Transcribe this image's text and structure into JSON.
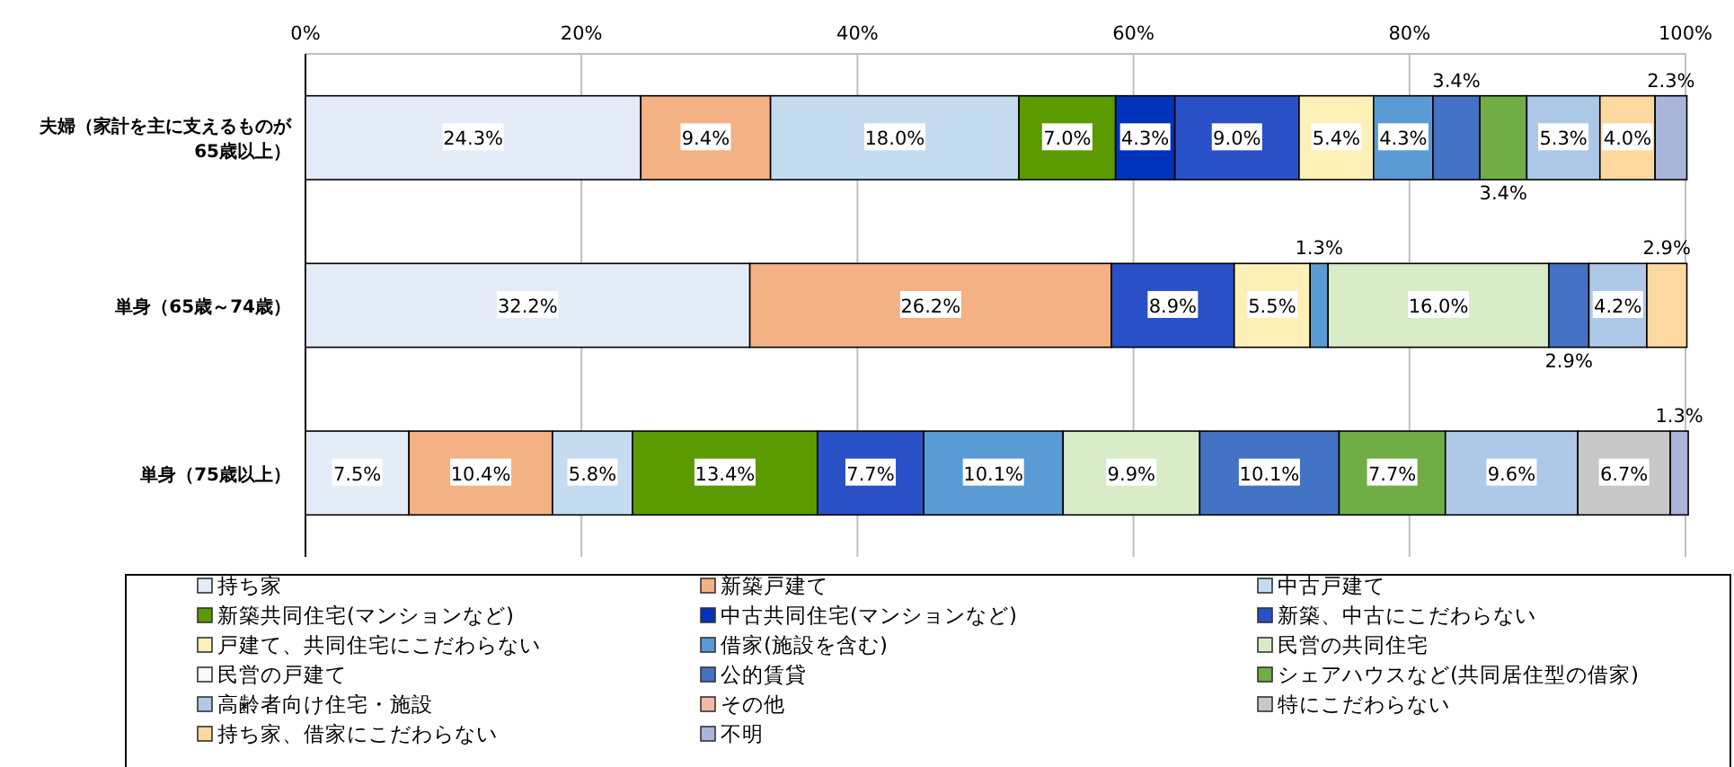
{
  "chart_data": {
    "type": "bar",
    "orientation": "horizontal",
    "stacked": true,
    "categories": [
      "夫婦（家計を主に支えるものが65歳以上）",
      "単身（65歳～74歳）",
      "単身（75歳以上）"
    ],
    "xlim": [
      0,
      100
    ],
    "xticks": [
      {
        "value": 0,
        "label": "0%"
      },
      {
        "value": 20,
        "label": "20%"
      },
      {
        "value": 40,
        "label": "40%"
      },
      {
        "value": 60,
        "label": "60%"
      },
      {
        "value": 80,
        "label": "80%"
      },
      {
        "value": 100,
        "label": "100%"
      }
    ],
    "grid": "x",
    "legend": "bottom",
    "series": [
      {
        "name": "持ち家",
        "color": "#e4ecf8",
        "values": [
          24.3,
          32.2,
          7.5
        ],
        "value_labels": [
          "24.3%",
          "32.2%",
          "7.5%"
        ]
      },
      {
        "name": "新築戸建て",
        "color": "#f4b183",
        "values": [
          9.4,
          26.2,
          10.4
        ],
        "value_labels": [
          "9.4%",
          "26.2%",
          "10.4%"
        ]
      },
      {
        "name": "中古戸建て",
        "color": "#c5dcf0",
        "values": [
          18.0,
          null,
          5.8
        ],
        "value_labels": [
          "18.0%",
          null,
          "5.8%"
        ]
      },
      {
        "name": "新築共同住宅(マンションなど)",
        "color": "#5b9a00",
        "values": [
          7.0,
          null,
          13.4
        ],
        "value_labels": [
          "7.0%",
          null,
          "13.4%"
        ]
      },
      {
        "name": "中古共同住宅(マンションなど)",
        "color": "#0033bb",
        "values": [
          4.3,
          null,
          null
        ],
        "value_labels": [
          "4.3%",
          null,
          null
        ]
      },
      {
        "name": "新築、中古にこだわらない",
        "color": "#2a50c8",
        "values": [
          9.0,
          8.9,
          7.7
        ],
        "value_labels": [
          "9.0%",
          "8.9%",
          "7.7%"
        ]
      },
      {
        "name": "戸建て、共同住宅にこだわらない",
        "color": "#fff0b8",
        "values": [
          5.4,
          5.5,
          null
        ],
        "value_labels": [
          "5.4%",
          "5.5%",
          null
        ]
      },
      {
        "name": "借家(施設を含む)",
        "color": "#5b9bd5",
        "values": [
          4.3,
          1.3,
          10.1
        ],
        "value_labels": [
          "4.3%",
          "1.3%",
          "10.1%"
        ]
      },
      {
        "name": "民営の共同住宅",
        "color": "#d9ecc8",
        "values": [
          null,
          16.0,
          9.9
        ],
        "value_labels": [
          null,
          "16.0%",
          "9.9%"
        ]
      },
      {
        "name": "民営の戸建て",
        "color": "#fafafa",
        "values": [
          null,
          null,
          null
        ]
      },
      {
        "name": "公的賃貸",
        "color": "#4472c4",
        "values": [
          3.4,
          2.9,
          10.1
        ],
        "value_labels": [
          "3.4%",
          "2.9%",
          "10.1%"
        ]
      },
      {
        "name": "シェアハウスなど(共同居住型の借家)",
        "color": "#70ad47",
        "values": [
          3.4,
          null,
          7.7
        ],
        "value_labels": [
          "3.4%",
          null,
          "7.7%"
        ]
      },
      {
        "name": "高齢者向け住宅・施設",
        "color": "#aec8e8",
        "values": [
          5.3,
          4.2,
          9.6
        ],
        "value_labels": [
          "5.3%",
          "4.2%",
          "9.6%"
        ]
      },
      {
        "name": "その他",
        "color": "#f8b8a8",
        "values": [
          null,
          null,
          null
        ]
      },
      {
        "name": "特にこだわらない",
        "color": "#c8c8c8",
        "values": [
          null,
          null,
          6.7
        ],
        "value_labels": [
          null,
          null,
          "6.7%"
        ]
      },
      {
        "name": "持ち家、借家にこだわらない",
        "color": "#ffd8a0",
        "values": [
          4.0,
          2.9,
          null
        ],
        "value_labels": [
          "4.0%",
          "2.9%",
          null
        ]
      },
      {
        "name": "不明",
        "color": "#a9b5d9",
        "values": [
          2.3,
          null,
          1.3
        ],
        "value_labels": [
          "2.3%",
          null,
          "1.3%"
        ]
      }
    ]
  }
}
